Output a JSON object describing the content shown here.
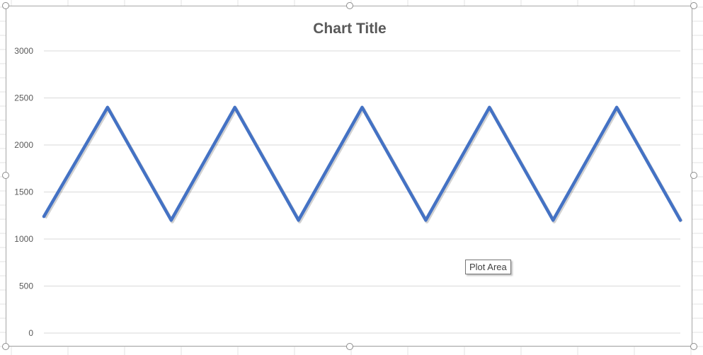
{
  "chart_data": {
    "type": "line",
    "title": "Chart Title",
    "xlabel": "",
    "ylabel": "",
    "ylim": [
      0,
      3000
    ],
    "y_ticks": [
      0,
      500,
      1000,
      1500,
      2000,
      2500,
      3000
    ],
    "grid": true,
    "legend": "none",
    "x": [
      1,
      2,
      3,
      4,
      5,
      6,
      7,
      8,
      9,
      10,
      11
    ],
    "series": [
      {
        "values": [
          1240,
          2400,
          1200,
          2400,
          1200,
          2400,
          1200,
          2400,
          1200,
          2400,
          1200
        ],
        "color": "#4472c4"
      }
    ],
    "gridline_color": "#d9d9d9",
    "tick_label_color": "#595959"
  },
  "tooltip": {
    "text": "Plot Area"
  }
}
